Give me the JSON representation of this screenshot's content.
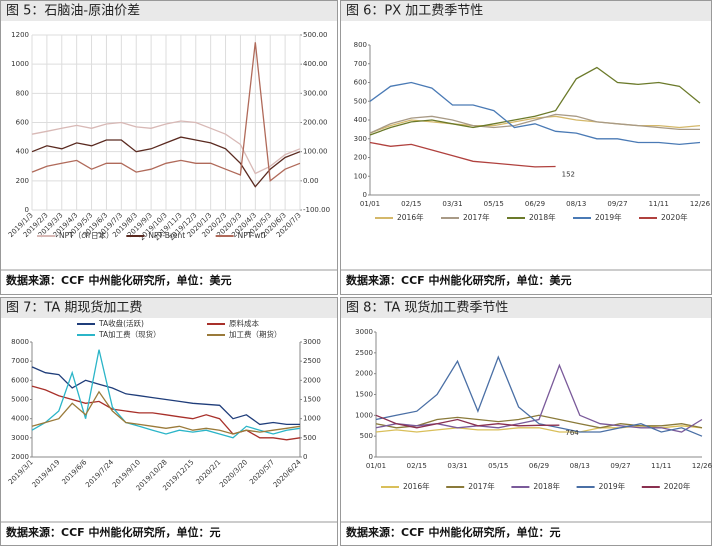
{
  "chart_data": [
    {
      "type": "line",
      "title": "图 5：石脑油-原油价差",
      "source": "数据来源：CCF 中州能化研究所，单位：美元",
      "categories": [
        "2019/1/3",
        "2019/2/3",
        "2019/3/3",
        "2019/4/3",
        "2019/5/3",
        "2019/6/3",
        "2019/7/3",
        "2019/8/3",
        "2019/9/3",
        "2019/10/3",
        "2019/11/3",
        "2019/12/3",
        "2020/1/3",
        "2020/2/3",
        "2020/3/3",
        "2020/4/3",
        "2020/5/3",
        "2020/6/3",
        "2020/7/3"
      ],
      "ylim": [
        0,
        1200
      ],
      "yticks": [
        0,
        200,
        400,
        600,
        800,
        1000,
        1200
      ],
      "y2lim": [
        -100,
        500
      ],
      "y2ticks": [
        {
          "value": -100,
          "label": "-100.00"
        },
        {
          "value": 0,
          "label": "0.00"
        },
        {
          "value": 100,
          "label": "100.00"
        },
        {
          "value": 200,
          "label": "200.00"
        },
        {
          "value": 300,
          "label": "300.00"
        },
        {
          "value": 400,
          "label": "400.00"
        },
        {
          "value": 500,
          "label": "500.00"
        }
      ],
      "grid": true,
      "legend": "bottom",
      "series": [
        {
          "name": "NPT（cfr日本）",
          "color": "#d8b9b6",
          "values": [
            520,
            540,
            560,
            580,
            560,
            590,
            600,
            570,
            560,
            590,
            610,
            600,
            560,
            520,
            450,
            250,
            300,
            380,
            420
          ]
        },
        {
          "name": "NPT-Brent",
          "color": "#5a2a20",
          "axis": "y2",
          "values": [
            100,
            120,
            110,
            130,
            120,
            140,
            140,
            100,
            110,
            130,
            150,
            140,
            130,
            110,
            60,
            -20,
            40,
            80,
            100
          ]
        },
        {
          "name": "NPT-wti",
          "color": "#b06a5a",
          "axis": "y2",
          "values": [
            30,
            50,
            60,
            70,
            40,
            60,
            60,
            30,
            40,
            60,
            70,
            60,
            60,
            40,
            20,
            475,
            0,
            40,
            60
          ]
        }
      ]
    },
    {
      "type": "line",
      "title": "图 6：PX 加工费季节性",
      "source": "数据来源：CCF 中州能化研究所，单位：美元",
      "categories": [
        "01/01",
        null,
        "02/15",
        null,
        "03/31",
        null,
        "05/15",
        null,
        "06/29",
        null,
        "08/13",
        null,
        "09/27",
        null,
        "11/11",
        null,
        "12/26"
      ],
      "ylim": [
        0,
        800
      ],
      "yticks": [
        0,
        100,
        200,
        300,
        400,
        500,
        600,
        700,
        800
      ],
      "grid": false,
      "legend": "bottom",
      "annotation": "152",
      "series": [
        {
          "name": "2016年",
          "color": "#d4b86a",
          "values": [
            330,
            370,
            400,
            390,
            380,
            370,
            370,
            390,
            410,
            420,
            400,
            390,
            380,
            370,
            370,
            360,
            370
          ]
        },
        {
          "name": "2017年",
          "color": "#a89a86",
          "values": [
            330,
            380,
            410,
            420,
            400,
            370,
            360,
            370,
            400,
            430,
            420,
            390,
            380,
            370,
            360,
            350,
            350
          ]
        },
        {
          "name": "2018年",
          "color": "#6b7a2a",
          "values": [
            320,
            360,
            390,
            400,
            380,
            360,
            380,
            400,
            420,
            450,
            620,
            680,
            600,
            590,
            600,
            580,
            490
          ]
        },
        {
          "name": "2019年",
          "color": "#4a7ab5",
          "values": [
            500,
            580,
            600,
            570,
            480,
            480,
            450,
            360,
            380,
            340,
            330,
            300,
            300,
            280,
            280,
            270,
            280
          ]
        },
        {
          "name": "2020年",
          "color": "#b0413e",
          "values": [
            280,
            260,
            270,
            240,
            210,
            180,
            170,
            160,
            150,
            152,
            null,
            null,
            null,
            null,
            null,
            null,
            null
          ]
        }
      ]
    },
    {
      "type": "line",
      "title": "图 7：TA 期现货加工费",
      "source": "数据来源：CCF 中州能化研究所，单位：元",
      "categories": [
        "2019/3/1",
        null,
        "2019/4/19",
        null,
        "2019/6/6",
        null,
        "2019/7/24",
        null,
        "2019/9/10",
        null,
        "2019/10/28",
        null,
        "2019/12/15",
        null,
        "2020/2/1",
        null,
        "2020/3/20",
        null,
        "2020/5/7",
        null,
        "2020/6/24"
      ],
      "ylim": [
        2000,
        8000
      ],
      "yticks": [
        2000,
        3000,
        4000,
        5000,
        6000,
        7000,
        8000
      ],
      "y2lim": [
        0,
        3000
      ],
      "y2ticks": [
        0,
        500,
        1000,
        1500,
        2000,
        2500,
        3000
      ],
      "grid": false,
      "legend": "top",
      "series": [
        {
          "name": "TA收盘(活跃)",
          "color": "#1f3d7a",
          "values": [
            6700,
            6400,
            6300,
            5600,
            6000,
            5800,
            5600,
            5300,
            5200,
            5100,
            5000,
            4900,
            4800,
            4750,
            4700,
            4000,
            4200,
            3700,
            3800,
            3700,
            3700
          ]
        },
        {
          "name": "原料成本",
          "color": "#a8302a",
          "values": [
            5700,
            5500,
            5200,
            5000,
            4800,
            4900,
            4500,
            4400,
            4300,
            4300,
            4200,
            4100,
            4000,
            4200,
            4000,
            3200,
            3400,
            3000,
            3000,
            2900,
            3000
          ]
        },
        {
          "name": "TA加工费（现货）",
          "color": "#2bb5c8",
          "axis": "y2",
          "values": [
            700,
            900,
            1200,
            2200,
            1000,
            2800,
            1300,
            900,
            800,
            700,
            600,
            700,
            650,
            700,
            600,
            500,
            800,
            700,
            600,
            700,
            750
          ]
        },
        {
          "name": "加工费（期货）",
          "color": "#9a7a3a",
          "axis": "y2",
          "values": [
            800,
            900,
            1000,
            1400,
            1100,
            1700,
            1200,
            900,
            850,
            800,
            750,
            800,
            700,
            750,
            700,
            600,
            700,
            650,
            700,
            750,
            800
          ]
        }
      ]
    },
    {
      "type": "line",
      "title": "图 8：TA 现货加工费季节性",
      "source": "数据来源：CCF 中州能化研究所，单位：元",
      "categories": [
        "01/01",
        null,
        "02/15",
        null,
        "03/31",
        null,
        "05/15",
        null,
        "06/29",
        null,
        "08/13",
        null,
        "09/27",
        null,
        "11/11",
        null,
        "12/26"
      ],
      "ylim": [
        0,
        3000
      ],
      "yticks": [
        0,
        500,
        1000,
        1500,
        2000,
        2500,
        3000
      ],
      "grid": false,
      "legend": "bottom",
      "annotation": "764",
      "series": [
        {
          "name": "2016年",
          "color": "#d9bf5a",
          "values": [
            600,
            650,
            600,
            650,
            700,
            650,
            650,
            700,
            700,
            600,
            600,
            700,
            700,
            750,
            700,
            750,
            700
          ]
        },
        {
          "name": "2017年",
          "color": "#8a7a3a",
          "values": [
            800,
            700,
            750,
            900,
            950,
            900,
            850,
            900,
            1000,
            900,
            800,
            700,
            800,
            750,
            750,
            800,
            700
          ]
        },
        {
          "name": "2018年",
          "color": "#7a5a9a",
          "values": [
            700,
            800,
            750,
            800,
            700,
            750,
            700,
            800,
            900,
            2200,
            1000,
            800,
            750,
            700,
            700,
            600,
            900
          ]
        },
        {
          "name": "2019年",
          "color": "#4a6fa5",
          "values": [
            900,
            1000,
            1100,
            1500,
            2300,
            1100,
            2400,
            1200,
            800,
            700,
            600,
            600,
            700,
            800,
            600,
            700,
            500
          ]
        },
        {
          "name": "2020年",
          "color": "#8a3050",
          "values": [
            1000,
            800,
            700,
            800,
            900,
            750,
            800,
            750,
            760,
            764,
            null,
            null,
            null,
            null,
            null,
            null,
            null
          ]
        }
      ]
    }
  ]
}
